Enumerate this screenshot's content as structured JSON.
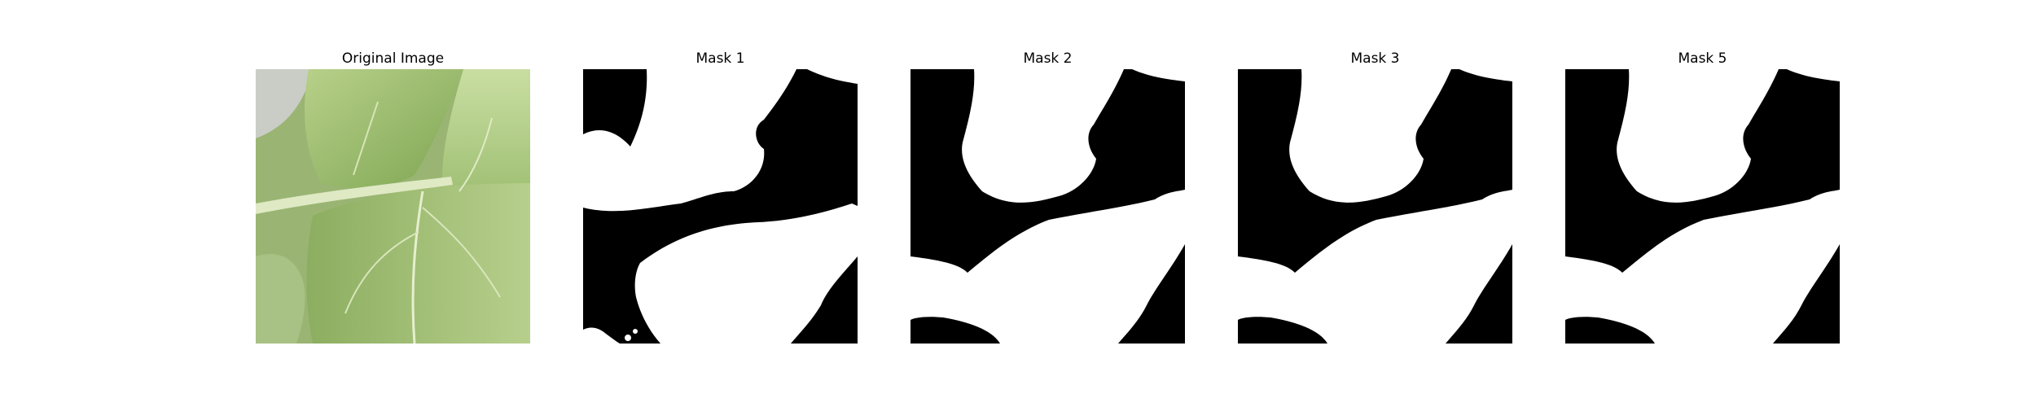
{
  "figure": {
    "panels": [
      {
        "title": "Original Image"
      },
      {
        "title": "Mask 1"
      },
      {
        "title": "Mask 2"
      },
      {
        "title": "Mask 3"
      },
      {
        "title": "Mask 5"
      }
    ]
  },
  "colors": {
    "background": "#ffffff",
    "mask_foreground": "#ffffff",
    "mask_background": "#000000",
    "leaf_light": "#c8dca0",
    "leaf_mid": "#9dbd6c",
    "leaf_dark": "#5e8a3a"
  }
}
